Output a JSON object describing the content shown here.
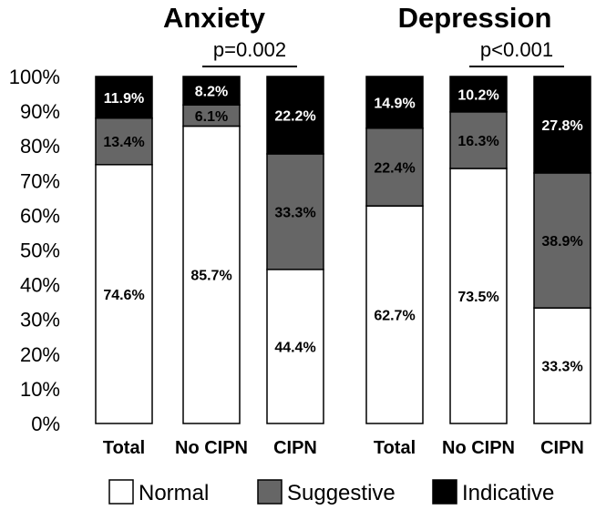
{
  "chart_data": {
    "type": "bar",
    "stacked": true,
    "ylim": [
      0,
      100
    ],
    "y_ticks": [
      "0%",
      "10%",
      "20%",
      "30%",
      "40%",
      "50%",
      "60%",
      "70%",
      "80%",
      "90%",
      "100%"
    ],
    "legend": {
      "placement": "bottom",
      "entries": [
        {
          "name": "Normal",
          "color": "#ffffff"
        },
        {
          "name": "Suggestive",
          "color": "#666666"
        },
        {
          "name": "Indicative",
          "color": "#000000"
        }
      ]
    },
    "panels": [
      {
        "title": "Anxiety",
        "p_value": "p=0.002",
        "categories": [
          "Total",
          "No CIPN",
          "CIPN"
        ],
        "series": [
          {
            "name": "Normal",
            "values": [
              74.6,
              85.7,
              44.4
            ],
            "labels": [
              "74.6%",
              "85.7%",
              "44.4%"
            ]
          },
          {
            "name": "Suggestive",
            "values": [
              13.4,
              6.1,
              33.3
            ],
            "labels": [
              "13.4%",
              "6.1%",
              "33.3%"
            ]
          },
          {
            "name": "Indicative",
            "values": [
              11.9,
              8.2,
              22.2
            ],
            "labels": [
              "11.9%",
              "8.2%",
              "22.2%"
            ]
          }
        ]
      },
      {
        "title": "Depression",
        "p_value": "p<0.001",
        "categories": [
          "Total",
          "No CIPN",
          "CIPN"
        ],
        "series": [
          {
            "name": "Normal",
            "values": [
              62.7,
              73.5,
              33.3
            ],
            "labels": [
              "62.7%",
              "73.5%",
              "33.3%"
            ]
          },
          {
            "name": "Suggestive",
            "values": [
              22.4,
              16.3,
              38.9
            ],
            "labels": [
              "22.4%",
              "16.3%",
              "38.9%"
            ]
          },
          {
            "name": "Indicative",
            "values": [
              14.9,
              10.2,
              27.8
            ],
            "labels": [
              "14.9%",
              "10.2%",
              "27.8%"
            ]
          }
        ]
      }
    ]
  }
}
